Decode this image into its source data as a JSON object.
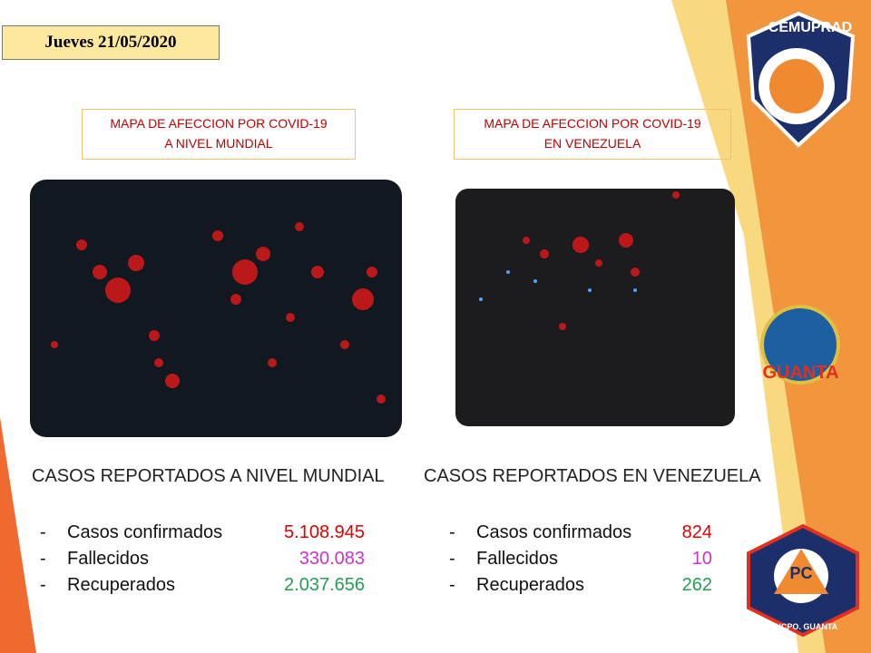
{
  "header": {
    "date": "Jueves 21/05/2020"
  },
  "panels": [
    {
      "caption": [
        "MAPA DE AFECCION POR COVID-19",
        "A NIVEL MUNDIAL"
      ],
      "heading": "CASOS REPORTADOS A NIVEL MUNDIAL",
      "items": [
        {
          "label": "Casos confirmados",
          "value": "5.108.945"
        },
        {
          "label": "Fallecidos",
          "value": "330.083"
        },
        {
          "label": "Recuperados",
          "value": "2.037.656"
        }
      ]
    },
    {
      "caption": [
        "MAPA DE AFECCION POR COVID-19",
        "EN VENEZUELA"
      ],
      "heading": "CASOS REPORTADOS EN VENEZUELA",
      "items": [
        {
          "label": "Casos confirmados",
          "value": "824"
        },
        {
          "label": "Fallecidos",
          "value": "10"
        },
        {
          "label": "Recuperados",
          "value": "262"
        }
      ]
    }
  ],
  "logos": {
    "cemuprad": "CEMUPRAD",
    "guanta": "GUANTA",
    "pc": "PC",
    "pc_bottom": "MNCPO. GUANTA"
  }
}
